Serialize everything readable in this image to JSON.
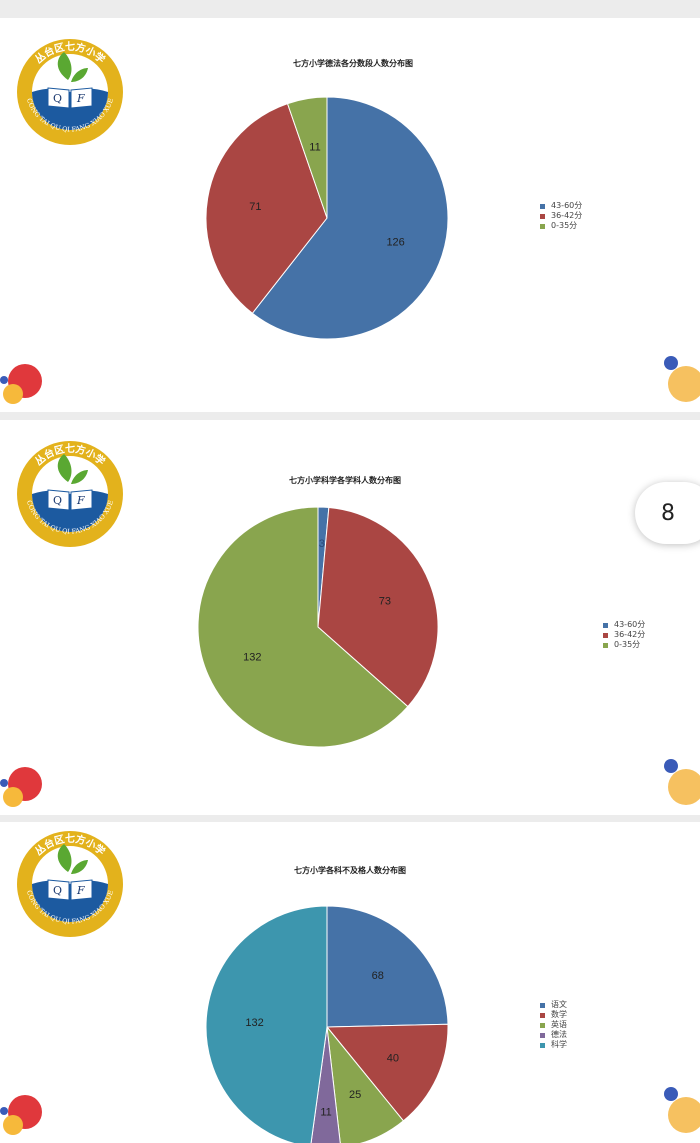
{
  "logo": {
    "text_cn": "丛台区七方小学",
    "text_en": "CONG TAI QU QI FANG XIAO XUE",
    "letters": "Q F"
  },
  "page_indicator": "8",
  "colors": {
    "blue": "#4572a7",
    "red": "#aa4643",
    "green": "#89a54e",
    "purple": "#80699b",
    "teal": "#3d96ae"
  },
  "chart_data": [
    {
      "type": "pie",
      "title": "七方小学德法各分数段人数分布图",
      "categories": [
        "43-60分",
        "36-42分",
        "0-35分"
      ],
      "values": [
        126,
        71,
        11
      ],
      "colors": [
        "#4572a7",
        "#aa4643",
        "#89a54e"
      ],
      "legend": "right"
    },
    {
      "type": "pie",
      "title": "七方小学科学各学科人数分布图",
      "categories": [
        "43-60分",
        "36-42分",
        "0-35分"
      ],
      "values": [
        3,
        73,
        132
      ],
      "colors": [
        "#4572a7",
        "#aa4643",
        "#89a54e"
      ],
      "legend": "right"
    },
    {
      "type": "pie",
      "title": "七方小学各科不及格人数分布图",
      "categories": [
        "语文",
        "数学",
        "英语",
        "德法",
        "科学"
      ],
      "values": [
        68,
        40,
        25,
        11,
        132
      ],
      "colors": [
        "#4572a7",
        "#aa4643",
        "#89a54e",
        "#80699b",
        "#3d96ae"
      ],
      "legend": "right"
    }
  ]
}
